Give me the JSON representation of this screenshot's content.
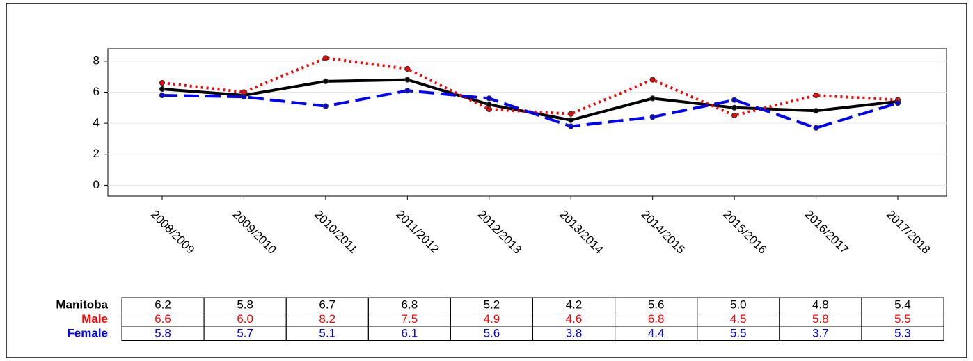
{
  "chart_data": {
    "type": "line",
    "categories": [
      "2008/2009",
      "2009/2010",
      "2010/2011",
      "2011/2012",
      "2012/2013",
      "2013/2014",
      "2014/2015",
      "2015/2016",
      "2016/2017",
      "2017/2018"
    ],
    "series": [
      {
        "name": "Manitoba",
        "color": "#000000",
        "dash": "solid",
        "values": [
          6.2,
          5.8,
          6.7,
          6.8,
          5.2,
          4.2,
          5.6,
          5.0,
          4.8,
          5.4
        ],
        "value_labels": [
          "6.2",
          "5.8",
          "6.7",
          "6.8",
          "5.2",
          "4.2",
          "5.6",
          "5.0",
          "4.8",
          "5.4"
        ]
      },
      {
        "name": "Male",
        "color": "#ff0000",
        "dash": "dotted",
        "values": [
          6.6,
          6.0,
          8.2,
          7.5,
          4.9,
          4.6,
          6.8,
          4.5,
          5.8,
          5.5
        ],
        "value_labels": [
          "6.6",
          "6.0",
          "8.2",
          "7.5",
          "4.9",
          "4.6",
          "6.8",
          "4.5",
          "5.8",
          "5.5"
        ]
      },
      {
        "name": "Female",
        "color": "#0000ff",
        "dash": "dashed",
        "values": [
          5.8,
          5.7,
          5.1,
          6.1,
          5.6,
          3.8,
          4.4,
          5.5,
          3.7,
          5.3
        ],
        "value_labels": [
          "5.8",
          "5.7",
          "5.1",
          "6.1",
          "5.6",
          "3.8",
          "4.4",
          "5.5",
          "3.7",
          "5.3"
        ]
      }
    ],
    "ylim": [
      -0.7,
      8.8
    ],
    "yticks": [
      0,
      2,
      4,
      6,
      8
    ],
    "grid": true
  }
}
